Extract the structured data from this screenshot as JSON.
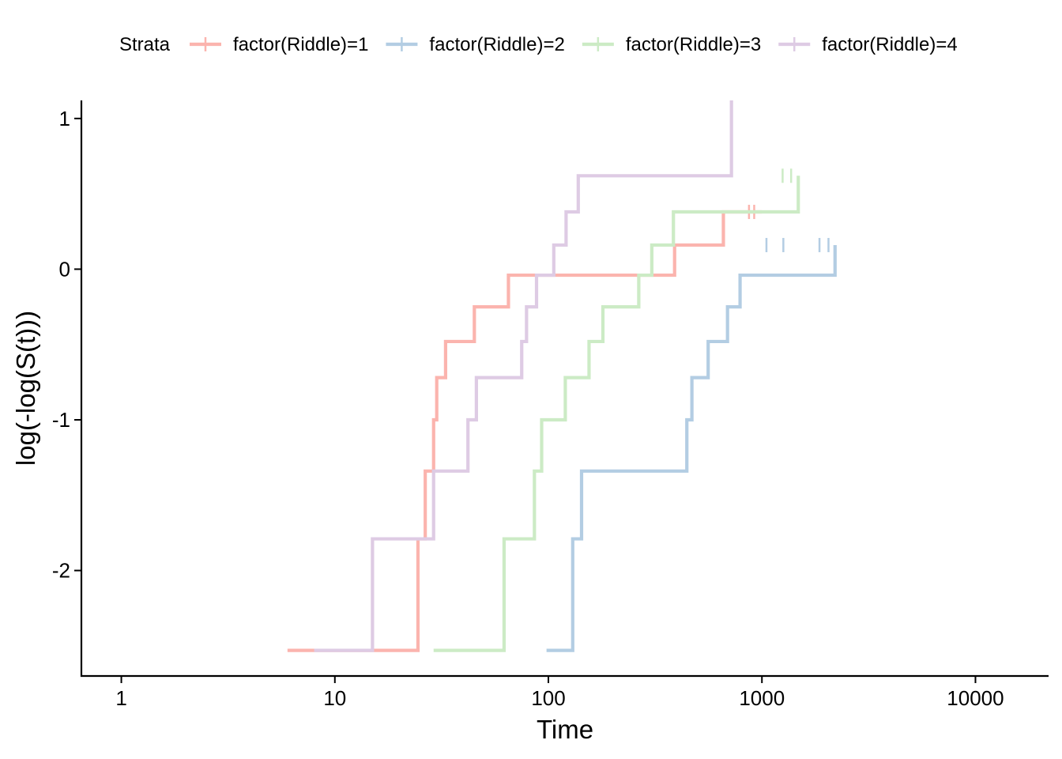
{
  "chart_data": {
    "type": "line",
    "subtype": "step",
    "xlabel": "Time",
    "ylabel": "log(-log(S(t)))",
    "x_scale": "log10",
    "xlim": [
      0.65,
      22000
    ],
    "ylim": [
      -2.7,
      1.12
    ],
    "x_ticks": [
      1,
      10,
      100,
      1000,
      10000
    ],
    "x_tick_labels": [
      "1",
      "10",
      "100",
      "1000",
      "10000"
    ],
    "y_ticks": [
      -2,
      -1,
      0,
      1
    ],
    "y_tick_labels": [
      "-2",
      "-1",
      "0",
      "1"
    ],
    "grid": false,
    "legend": {
      "title": "Strata",
      "position": "top"
    },
    "series": [
      {
        "name": "factor(Riddle)=1",
        "color": "#FBB4AE",
        "x": [
          6,
          24,
          24.5,
          26.5,
          29,
          30,
          33,
          45,
          65,
          390,
          660,
          1000
        ],
        "y": [
          -2.53,
          -2.53,
          -1.79,
          -1.34,
          -1.0,
          -0.72,
          -0.48,
          -0.25,
          -0.04,
          0.16,
          0.38,
          0.38
        ],
        "censor_x": [
          870,
          920
        ],
        "censor_y": [
          0.38,
          0.38
        ]
      },
      {
        "name": "factor(Riddle)=2",
        "color": "#B3CDE3",
        "x": [
          98,
          128,
          130,
          143,
          445,
          470,
          560,
          690,
          790,
          2200
        ],
        "y": [
          -2.53,
          -2.53,
          -1.79,
          -1.34,
          -1.0,
          -0.72,
          -0.48,
          -0.25,
          -0.04,
          0.16
        ],
        "censor_x": [
          1050,
          1260,
          1860,
          2050
        ],
        "censor_y": [
          0.16,
          0.16,
          0.16,
          0.16
        ]
      },
      {
        "name": "factor(Riddle)=3",
        "color": "#CCEBC5",
        "x": [
          29,
          40,
          62,
          86,
          93,
          120,
          155,
          180,
          265,
          305,
          385,
          1480
        ],
        "y": [
          -2.53,
          -2.53,
          -1.79,
          -1.34,
          -1.0,
          -0.72,
          -0.48,
          -0.25,
          -0.04,
          0.16,
          0.38,
          0.62
        ],
        "censor_x": [
          1250,
          1370
        ],
        "censor_y": [
          0.62,
          0.62
        ]
      },
      {
        "name": "factor(Riddle)=4",
        "color": "#DECBE4",
        "x": [
          8,
          12,
          15,
          29,
          42,
          46,
          75,
          79,
          88,
          106,
          121,
          138,
          720
        ],
        "y": [
          -2.53,
          -2.53,
          -1.79,
          -1.34,
          -1.0,
          -0.72,
          -0.48,
          -0.25,
          -0.04,
          0.16,
          0.38,
          0.62,
          0.94
        ],
        "end_y": 1.12,
        "censor_x": [],
        "censor_y": []
      }
    ]
  }
}
